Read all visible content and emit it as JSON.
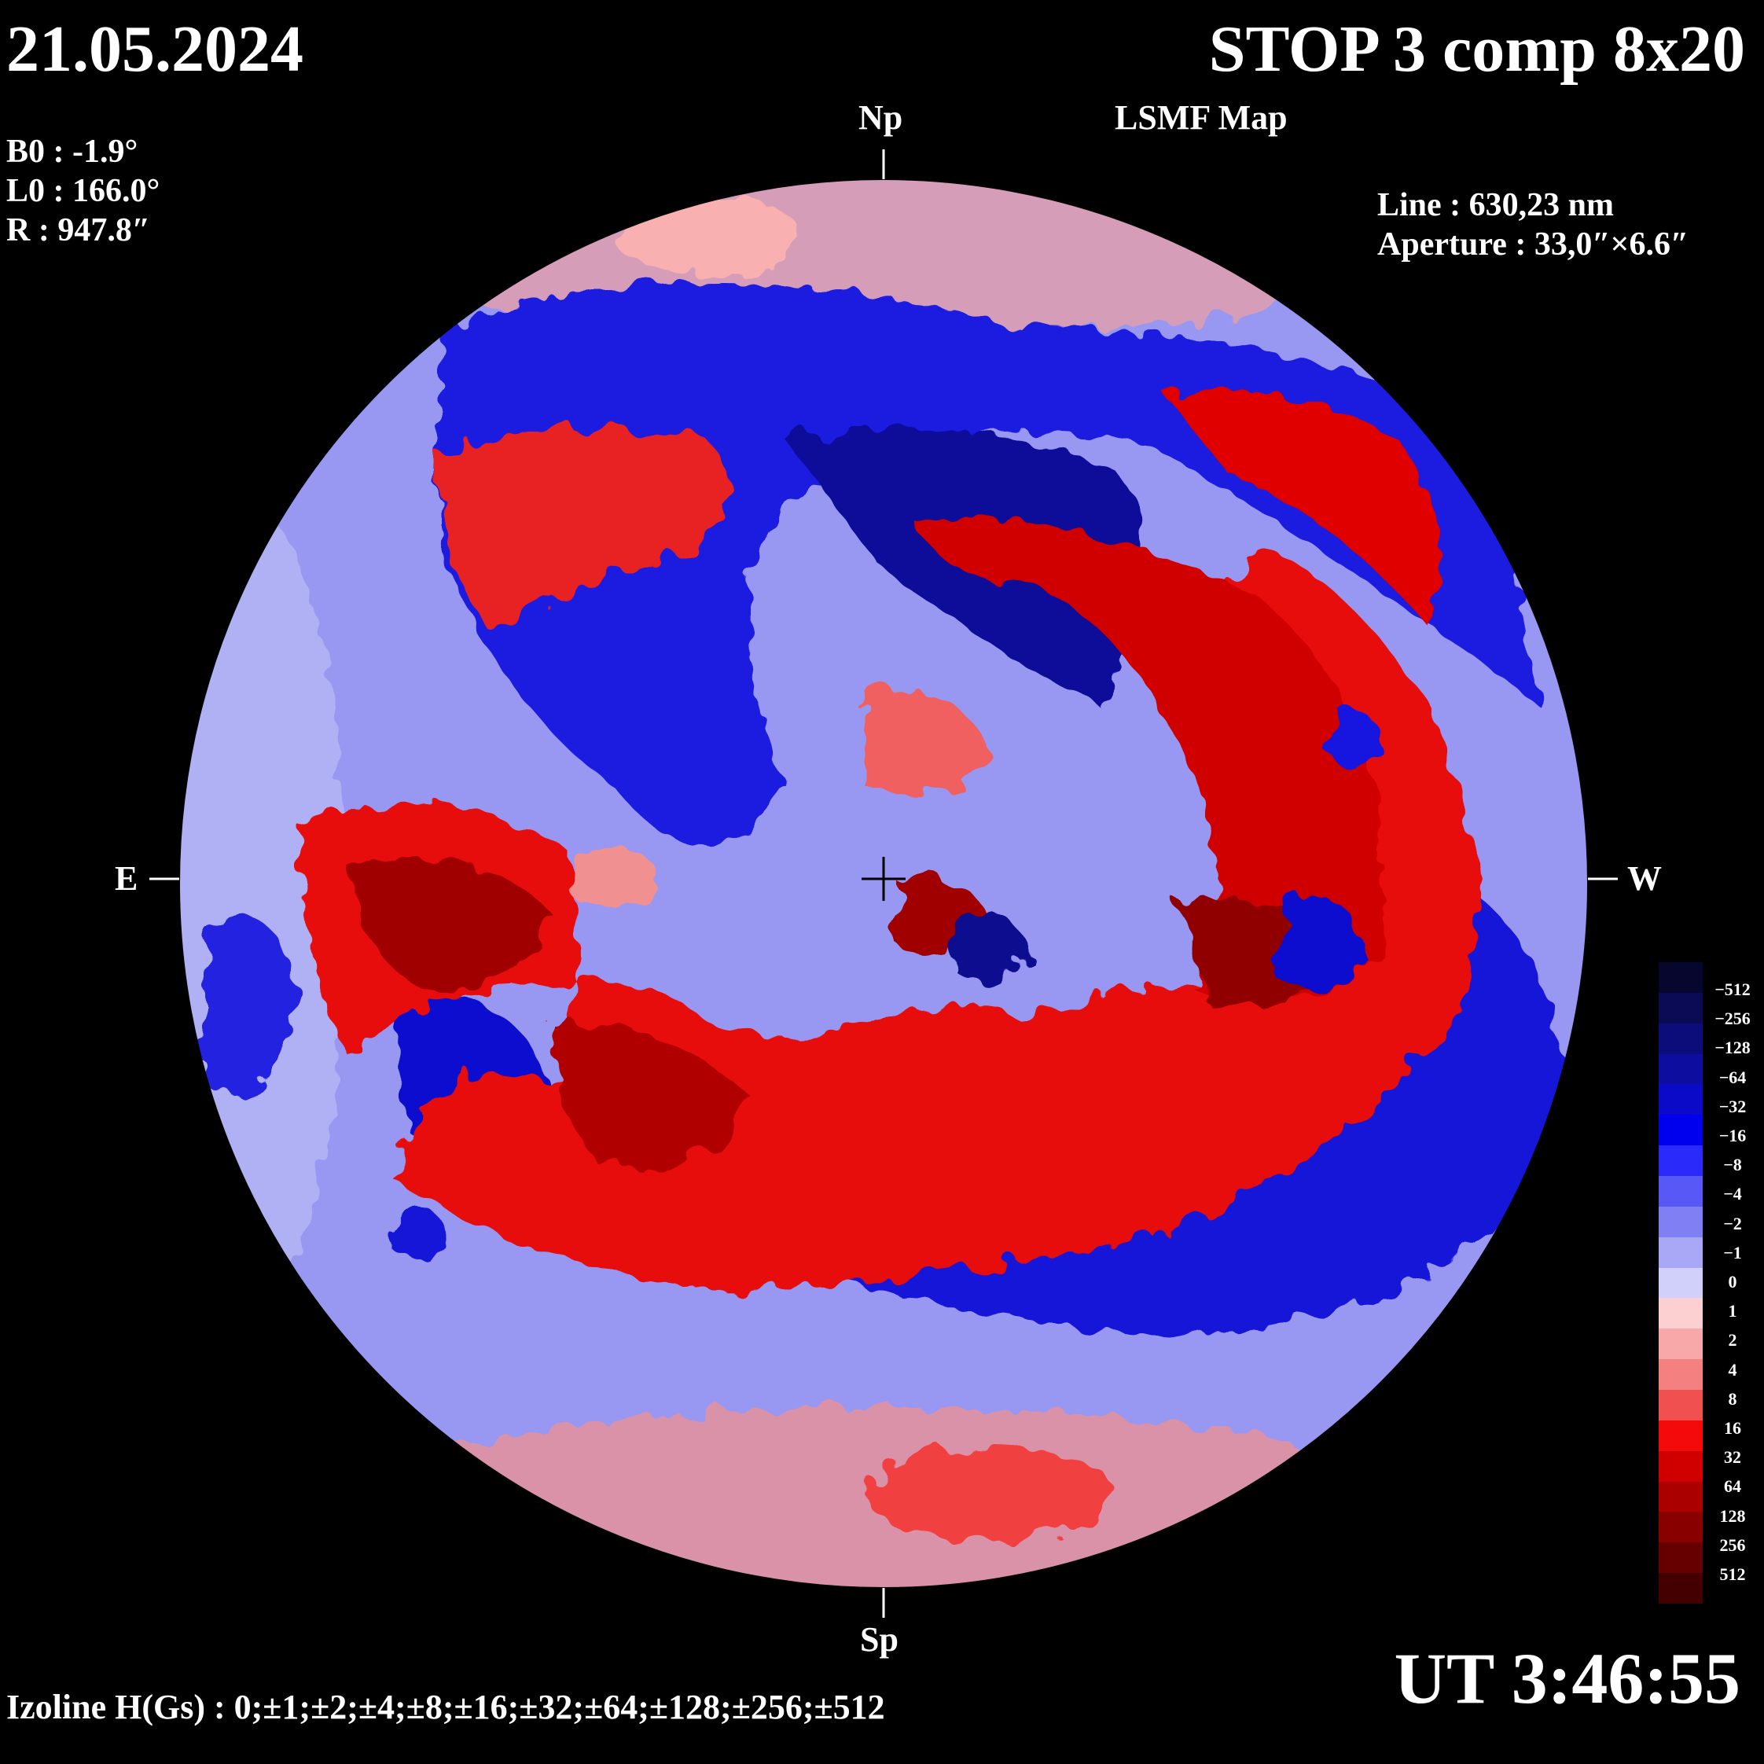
{
  "header": {
    "date": "21.05.2024",
    "title": "STOP 3 comp 8x20",
    "subtitle": "LSMF Map"
  },
  "ephemeris": {
    "b0": "B0 : -1.9°",
    "l0": "L0 : 166.0°",
    "r": "R  : 947.8″"
  },
  "instrument": {
    "line": "Line : 630,23 nm",
    "aperture": "Aperture : 33,0″×6.6″"
  },
  "directions": {
    "north": "Np",
    "south": "Sp",
    "east": "E",
    "west": "W"
  },
  "time": "UT 3:46:55",
  "izoline": "Izoline H(Gs) : 0;±1;±2;±4;±8;±16;±32;±64;±128;±256;±512",
  "colorbar": {
    "labels": [
      "−512",
      "−256",
      "−128",
      "−64",
      "−32",
      "−16",
      "−8",
      "−4",
      "−2",
      "−1",
      "0",
      "1",
      "2",
      "4",
      "8",
      "16",
      "32",
      "64",
      "128",
      "256",
      "512"
    ],
    "colors": [
      "#06062e",
      "#0a0a55",
      "#0c0c7a",
      "#0d0da0",
      "#0a0ac8",
      "#0000ee",
      "#2a2afa",
      "#5858f6",
      "#8080f4",
      "#a8a8f6",
      "#d0d0fa",
      "#fcd0d0",
      "#f8a8a8",
      "#f48080",
      "#f05050",
      "#f40a0a",
      "#d00000",
      "#aa0000",
      "#880000",
      "#660000",
      "#440000"
    ]
  },
  "colors": {
    "background": "#000000",
    "text": "#ffffff",
    "positive": "#e60000",
    "negative": "#0000d0"
  }
}
